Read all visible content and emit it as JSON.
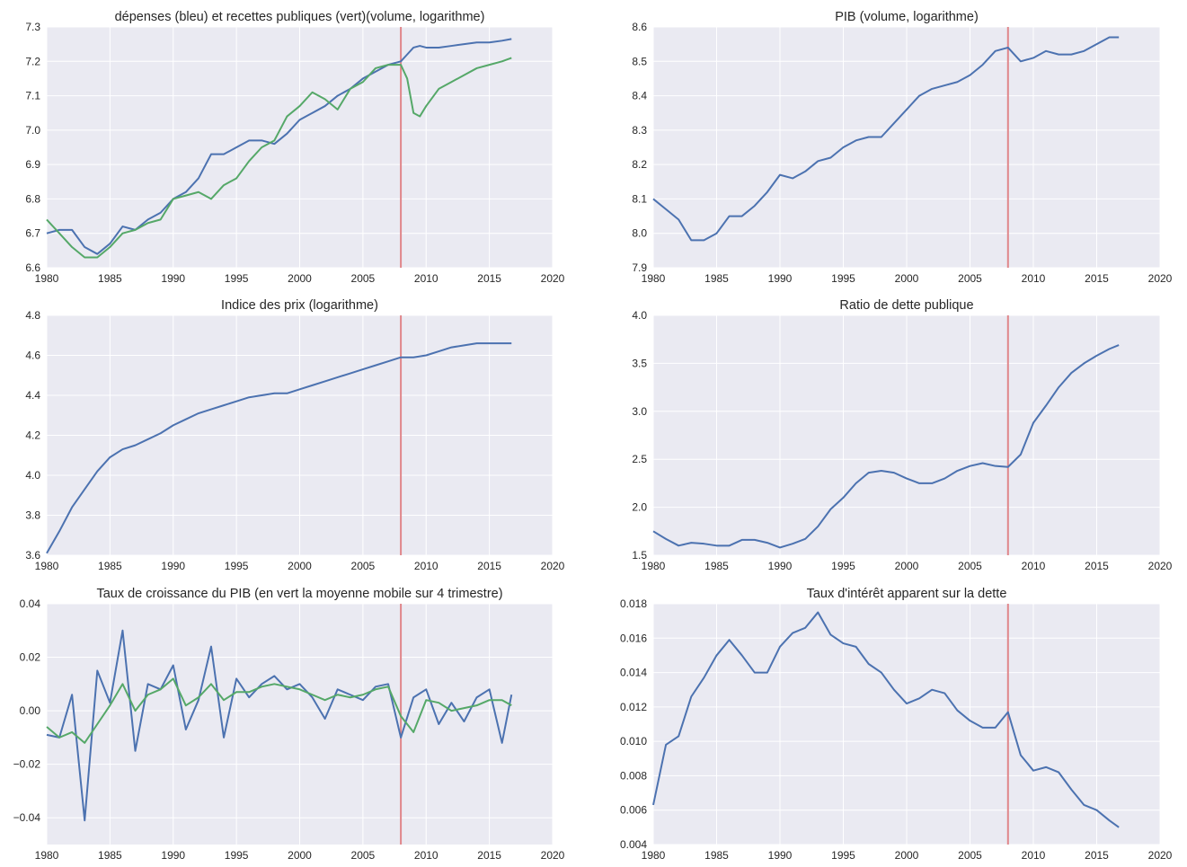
{
  "chart_data": [
    {
      "type": "line",
      "title": "dépenses (bleu) et recettes publiques (vert)(volume, logarithme)",
      "x": [
        1980,
        1981,
        1982,
        1983,
        1984,
        1985,
        1986,
        1987,
        1988,
        1989,
        1990,
        1991,
        1992,
        1993,
        1994,
        1995,
        1996,
        1997,
        1998,
        1999,
        2000,
        2001,
        2002,
        2003,
        2004,
        2005,
        2006,
        2007,
        2008,
        2008.5,
        2009,
        2009.5,
        2010,
        2011,
        2012,
        2013,
        2014,
        2015,
        2016,
        2016.75
      ],
      "series": [
        {
          "color": "#4c72b0",
          "values": [
            6.7,
            6.71,
            6.71,
            6.66,
            6.64,
            6.67,
            6.72,
            6.71,
            6.74,
            6.76,
            6.8,
            6.82,
            6.86,
            6.93,
            6.93,
            6.95,
            6.97,
            6.97,
            6.96,
            6.99,
            7.03,
            7.05,
            7.07,
            7.1,
            7.12,
            7.15,
            7.17,
            7.19,
            7.2,
            7.22,
            7.24,
            7.245,
            7.24,
            7.24,
            7.245,
            7.25,
            7.255,
            7.255,
            7.26,
            7.265
          ]
        },
        {
          "color": "#55a868",
          "values": [
            6.74,
            6.7,
            6.66,
            6.63,
            6.63,
            6.66,
            6.7,
            6.71,
            6.73,
            6.74,
            6.8,
            6.81,
            6.82,
            6.8,
            6.84,
            6.86,
            6.91,
            6.95,
            6.97,
            7.04,
            7.07,
            7.11,
            7.09,
            7.06,
            7.12,
            7.14,
            7.18,
            7.19,
            7.19,
            7.15,
            7.05,
            7.04,
            7.07,
            7.12,
            7.14,
            7.16,
            7.18,
            7.19,
            7.2,
            7.21
          ]
        }
      ],
      "xlim": [
        1980,
        2020
      ],
      "xticks": [
        1980,
        1985,
        1990,
        1995,
        2000,
        2005,
        2010,
        2015,
        2020
      ],
      "ylim": [
        6.6,
        7.3
      ],
      "yticks": [
        6.6,
        6.7,
        6.8,
        6.9,
        {
          "value": 7,
          "label": "7.0"
        },
        7.1,
        7.2,
        7.3
      ],
      "grid": true,
      "vline": {
        "value": 2008,
        "color": "#e0868a"
      }
    },
    {
      "type": "line",
      "title": "PIB (volume, logarithme)",
      "x": [
        1980,
        1981,
        1982,
        1983,
        1984,
        1985,
        1986,
        1987,
        1988,
        1989,
        1990,
        1991,
        1992,
        1993,
        1994,
        1995,
        1996,
        1997,
        1998,
        1999,
        2000,
        2001,
        2002,
        2003,
        2004,
        2005,
        2006,
        2007,
        2008,
        2009,
        2010,
        2011,
        2012,
        2013,
        2014,
        2015,
        2016,
        2016.75
      ],
      "series": [
        {
          "color": "#4c72b0",
          "values": [
            8.1,
            8.07,
            8.04,
            7.98,
            7.98,
            8.0,
            8.05,
            8.05,
            8.08,
            8.12,
            8.17,
            8.16,
            8.18,
            8.21,
            8.22,
            8.25,
            8.27,
            8.28,
            8.28,
            8.32,
            8.36,
            8.4,
            8.42,
            8.43,
            8.44,
            8.46,
            8.49,
            8.53,
            8.54,
            8.5,
            8.51,
            8.53,
            8.52,
            8.52,
            8.53,
            8.55,
            8.57,
            8.57
          ]
        }
      ],
      "xlim": [
        1980,
        2020
      ],
      "xticks": [
        1980,
        1985,
        1990,
        1995,
        2000,
        2005,
        2010,
        2015,
        2020
      ],
      "ylim": [
        7.9,
        8.6
      ],
      "yticks": [
        7.9,
        {
          "value": 8,
          "label": "8.0"
        },
        8.1,
        8.2,
        8.3,
        8.4,
        8.5,
        8.6
      ],
      "grid": true,
      "vline": {
        "value": 2008,
        "color": "#e0868a"
      }
    },
    {
      "type": "line",
      "title": "Indice des prix (logarithme)",
      "x": [
        1980,
        1981,
        1982,
        1983,
        1984,
        1985,
        1986,
        1987,
        1988,
        1989,
        1990,
        1991,
        1992,
        1993,
        1994,
        1995,
        1996,
        1997,
        1998,
        1999,
        2000,
        2001,
        2002,
        2003,
        2004,
        2005,
        2006,
        2007,
        2008,
        2009,
        2010,
        2011,
        2012,
        2013,
        2014,
        2015,
        2016,
        2016.75
      ],
      "series": [
        {
          "color": "#4c72b0",
          "values": [
            3.61,
            3.72,
            3.84,
            3.93,
            4.02,
            4.09,
            4.13,
            4.15,
            4.18,
            4.21,
            4.25,
            4.28,
            4.31,
            4.33,
            4.35,
            4.37,
            4.39,
            4.4,
            4.41,
            4.41,
            4.43,
            4.45,
            4.47,
            4.49,
            4.51,
            4.53,
            4.55,
            4.57,
            4.59,
            4.59,
            4.6,
            4.62,
            4.64,
            4.65,
            4.66,
            4.66,
            4.66,
            4.66
          ]
        }
      ],
      "xlim": [
        1980,
        2020
      ],
      "xticks": [
        1980,
        1985,
        1990,
        1995,
        2000,
        2005,
        2010,
        2015,
        2020
      ],
      "ylim": [
        3.6,
        4.8
      ],
      "yticks": [
        3.6,
        3.8,
        {
          "value": 4,
          "label": "4.0"
        },
        4.2,
        4.4,
        4.6,
        4.8
      ],
      "grid": true,
      "vline": {
        "value": 2008,
        "color": "#e0868a"
      }
    },
    {
      "type": "line",
      "title": "Ratio de dette publique",
      "x": [
        1980,
        1981,
        1982,
        1983,
        1984,
        1985,
        1986,
        1987,
        1988,
        1989,
        1990,
        1991,
        1992,
        1993,
        1994,
        1995,
        1996,
        1997,
        1998,
        1999,
        2000,
        2001,
        2002,
        2003,
        2004,
        2005,
        2006,
        2007,
        2008,
        2009,
        2010,
        2011,
        2012,
        2013,
        2014,
        2015,
        2016,
        2016.75
      ],
      "series": [
        {
          "color": "#4c72b0",
          "values": [
            1.75,
            1.67,
            1.6,
            1.63,
            1.62,
            1.6,
            1.6,
            1.66,
            1.66,
            1.63,
            1.58,
            1.62,
            1.67,
            1.8,
            1.98,
            2.1,
            2.25,
            2.36,
            2.38,
            2.36,
            2.3,
            2.25,
            2.25,
            2.3,
            2.38,
            2.43,
            2.46,
            2.43,
            2.42,
            2.55,
            2.88,
            3.06,
            3.25,
            3.4,
            3.5,
            3.58,
            3.65,
            3.69
          ]
        }
      ],
      "xlim": [
        1980,
        2020
      ],
      "xticks": [
        1980,
        1985,
        1990,
        1995,
        2000,
        2005,
        2010,
        2015,
        2020
      ],
      "ylim": [
        1.5,
        4
      ],
      "yticks": [
        1.5,
        {
          "value": 2,
          "label": "2.0"
        },
        2.5,
        {
          "value": 3,
          "label": "3.0"
        },
        3.5,
        {
          "value": 4,
          "label": "4.0"
        }
      ],
      "grid": true,
      "vline": {
        "value": 2008,
        "color": "#e0868a"
      }
    },
    {
      "type": "line",
      "title": "Taux de croissance du PIB (en vert la moyenne mobile sur 4 trimestre)",
      "x": [
        1980,
        1981,
        1982,
        1983,
        1984,
        1985,
        1986,
        1987,
        1988,
        1989,
        1990,
        1991,
        1992,
        1993,
        1994,
        1995,
        1996,
        1997,
        1998,
        1999,
        2000,
        2001,
        2002,
        2003,
        2004,
        2005,
        2006,
        2007,
        2008,
        2009,
        2010,
        2011,
        2012,
        2013,
        2014,
        2015,
        2016,
        2016.75
      ],
      "series": [
        {
          "color": "#4c72b0",
          "values": [
            -0.009,
            -0.01,
            0.006,
            -0.041,
            0.015,
            0.003,
            0.03,
            -0.015,
            0.01,
            0.008,
            0.017,
            -0.007,
            0.004,
            0.024,
            -0.01,
            0.012,
            0.005,
            0.01,
            0.013,
            0.008,
            0.01,
            0.005,
            -0.003,
            0.008,
            0.006,
            0.004,
            0.009,
            0.01,
            -0.01,
            0.005,
            0.008,
            -0.005,
            0.003,
            -0.004,
            0.005,
            0.008,
            -0.012,
            0.006
          ]
        },
        {
          "color": "#55a868",
          "values": [
            -0.006,
            -0.01,
            -0.008,
            -0.012,
            -0.005,
            0.002,
            0.01,
            0.0,
            0.006,
            0.008,
            0.012,
            0.002,
            0.005,
            0.01,
            0.004,
            0.007,
            0.007,
            0.009,
            0.01,
            0.009,
            0.008,
            0.006,
            0.004,
            0.006,
            0.005,
            0.006,
            0.008,
            0.009,
            -0.002,
            -0.008,
            0.004,
            0.003,
            0.0,
            0.001,
            0.002,
            0.004,
            0.004,
            0.002
          ]
        }
      ],
      "xlim": [
        1980,
        2020
      ],
      "xticks": [
        1980,
        1985,
        1990,
        1995,
        2000,
        2005,
        2010,
        2015,
        2020
      ],
      "ylim": [
        -0.05,
        0.04
      ],
      "yticks": [
        {
          "value": -0.04,
          "label": "−0.04"
        },
        {
          "value": -0.02,
          "label": "−0.02"
        },
        {
          "value": 0,
          "label": "0.00"
        },
        0.02,
        0.04
      ],
      "grid": true,
      "vline": {
        "value": 2008,
        "color": "#e0868a"
      }
    },
    {
      "type": "line",
      "title": "Taux d'intérêt apparent sur la dette",
      "x": [
        1980,
        1981,
        1982,
        1983,
        1984,
        1985,
        1986,
        1987,
        1988,
        1989,
        1990,
        1991,
        1992,
        1993,
        1994,
        1995,
        1996,
        1997,
        1998,
        1999,
        2000,
        2001,
        2002,
        2003,
        2004,
        2005,
        2006,
        2007,
        2008,
        2009,
        2010,
        2011,
        2012,
        2013,
        2014,
        2015,
        2016,
        2016.75
      ],
      "series": [
        {
          "color": "#4c72b0",
          "values": [
            0.0063,
            0.0098,
            0.0103,
            0.0126,
            0.0137,
            0.015,
            0.0159,
            0.015,
            0.014,
            0.014,
            0.0155,
            0.0163,
            0.0166,
            0.0175,
            0.0162,
            0.0157,
            0.0155,
            0.0145,
            0.014,
            0.013,
            0.0122,
            0.0125,
            0.013,
            0.0128,
            0.0118,
            0.0112,
            0.0108,
            0.0108,
            0.0117,
            0.0092,
            0.0083,
            0.0085,
            0.0082,
            0.0072,
            0.0063,
            0.006,
            0.0054,
            0.005
          ]
        }
      ],
      "xlim": [
        1980,
        2020
      ],
      "xticks": [
        1980,
        1985,
        1990,
        1995,
        2000,
        2005,
        2010,
        2015,
        2020
      ],
      "ylim": [
        0.004,
        0.018
      ],
      "yticks": [
        0.004,
        0.006,
        0.008,
        {
          "value": 0.01,
          "label": "0.010"
        },
        0.012,
        0.014,
        0.016,
        0.018
      ],
      "grid": true,
      "vline": {
        "value": 2008,
        "color": "#e0868a"
      }
    }
  ]
}
